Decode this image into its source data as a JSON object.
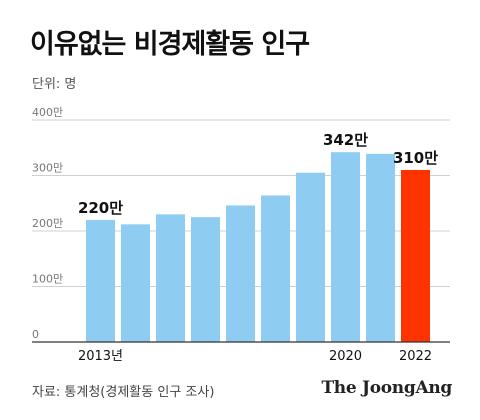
{
  "title": "이유없는 비경제활동 인구",
  "unit": "단위: 명",
  "source": "자료: 통계청(경제활동 인구 조사)",
  "brand": "The JoongAng",
  "colors": {
    "bar": "#8ECDF1",
    "highlight": "#FF3300",
    "grid": "#D0D0D0",
    "axis": "#333333"
  },
  "chart_data": {
    "type": "bar",
    "categories": [
      "2013년",
      "",
      "",
      "",
      "",
      "",
      "",
      "2020",
      "",
      "2022"
    ],
    "values": [
      220,
      212,
      230,
      225,
      246,
      264,
      305,
      342,
      339,
      310
    ],
    "value_suffix": "만",
    "ylim": [
      0,
      400
    ],
    "yticks": [
      0,
      100,
      200,
      300,
      400
    ],
    "ytick_labels": [
      "0",
      "100만",
      "200만",
      "300만",
      "400만"
    ],
    "grid": true,
    "highlight_index": 9,
    "labeled_indices": [
      0,
      7,
      9
    ]
  }
}
